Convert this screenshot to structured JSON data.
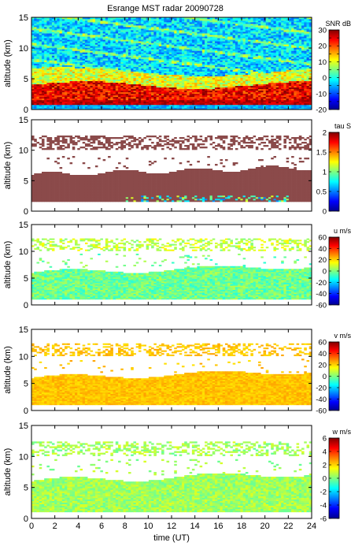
{
  "title": "Esrange MST radar 20090728",
  "chart_data": [
    {
      "type": "heatmap",
      "title": "Esrange MST radar 20090728",
      "quantity": "SNR",
      "colorbar_label": "SNR dB",
      "ylabel": "altitude (km)",
      "xlabel": "",
      "xlim": [
        0,
        24
      ],
      "ylim": [
        0,
        15
      ],
      "yticks": [
        0,
        5,
        10,
        15
      ],
      "xticks": [],
      "clim": [
        -20,
        30
      ],
      "cticks": [
        -20,
        -15,
        -10,
        -5,
        0,
        5,
        10,
        15,
        20,
        25,
        30
      ],
      "colorbar_ticks_shown": [
        30,
        20,
        10,
        0,
        -10,
        -20
      ],
      "pattern": [
        {
          "alt_range": [
            0,
            1
          ],
          "level": "low (-10 to 0 dB)"
        },
        {
          "alt_range": [
            1,
            4
          ],
          "level": "high (20 to 30 dB)"
        },
        {
          "alt_range": [
            4,
            6
          ],
          "level": "medium (5 to 15 dB)"
        },
        {
          "alt_range": [
            6,
            15
          ],
          "level": "low (-10 to 0 dB)"
        }
      ]
    },
    {
      "type": "heatmap",
      "quantity": "tau",
      "colorbar_label": "tau S",
      "ylabel": "altitude (km)",
      "xlabel": "",
      "xlim": [
        0,
        24
      ],
      "ylim": [
        0,
        15
      ],
      "yticks": [
        0,
        5,
        10,
        15
      ],
      "clim": [
        0,
        2
      ],
      "cticks": [
        0,
        0.5,
        1,
        1.5,
        2
      ],
      "pattern": [
        {
          "alt_range": [
            1.5,
            7.5
          ],
          "level": "2 (saturated)"
        },
        {
          "alt_range": [
            1.5,
            2.5
          ],
          "time_range": [
            8,
            22
          ],
          "level": "0.5 to 1"
        },
        {
          "alt_range": [
            10,
            12.5
          ],
          "level": "2 (saturated)"
        }
      ]
    },
    {
      "type": "heatmap",
      "quantity": "u",
      "colorbar_label": "u m/s",
      "ylabel": "altitude (km)",
      "xlabel": "",
      "xlim": [
        0,
        24
      ],
      "ylim": [
        0,
        15
      ],
      "yticks": [
        0,
        5,
        10,
        15
      ],
      "clim": [
        -60,
        60
      ],
      "cticks": [
        -60,
        -40,
        -20,
        0,
        20,
        40,
        60
      ],
      "pattern": [
        {
          "alt_range": [
            1,
            7
          ],
          "level": "-10 to 10 m/s"
        },
        {
          "alt_range": [
            10,
            12.5
          ],
          "level": "0 to 20 m/s"
        }
      ]
    },
    {
      "type": "heatmap",
      "quantity": "v",
      "colorbar_label": "v m/s",
      "ylabel": "altitude (km)",
      "xlabel": "",
      "xlim": [
        0,
        24
      ],
      "ylim": [
        0,
        15
      ],
      "yticks": [
        0,
        5,
        10,
        15
      ],
      "clim": [
        -60,
        60
      ],
      "cticks": [
        -60,
        -40,
        -20,
        0,
        20,
        40,
        60
      ],
      "pattern": [
        {
          "alt_range": [
            1,
            7
          ],
          "level": "15 to 25 m/s"
        },
        {
          "alt_range": [
            10,
            12.5
          ],
          "level": "15 to 25 m/s"
        }
      ]
    },
    {
      "type": "heatmap",
      "quantity": "w",
      "colorbar_label": "w m/s",
      "ylabel": "altitude (km)",
      "xlabel": "time (UT)",
      "xlim": [
        0,
        24
      ],
      "ylim": [
        0,
        15
      ],
      "yticks": [
        0,
        5,
        10,
        15
      ],
      "xticks": [
        0,
        2,
        4,
        6,
        8,
        10,
        12,
        14,
        16,
        18,
        20,
        22,
        24
      ],
      "clim": [
        -6,
        6
      ],
      "cticks": [
        -6,
        -4,
        -2,
        0,
        2,
        4,
        6
      ],
      "pattern": [
        {
          "alt_range": [
            1,
            7
          ],
          "level": "0 to 1 m/s"
        },
        {
          "alt_range": [
            10,
            12.5
          ],
          "level": "0 to 1 m/s"
        }
      ]
    }
  ]
}
